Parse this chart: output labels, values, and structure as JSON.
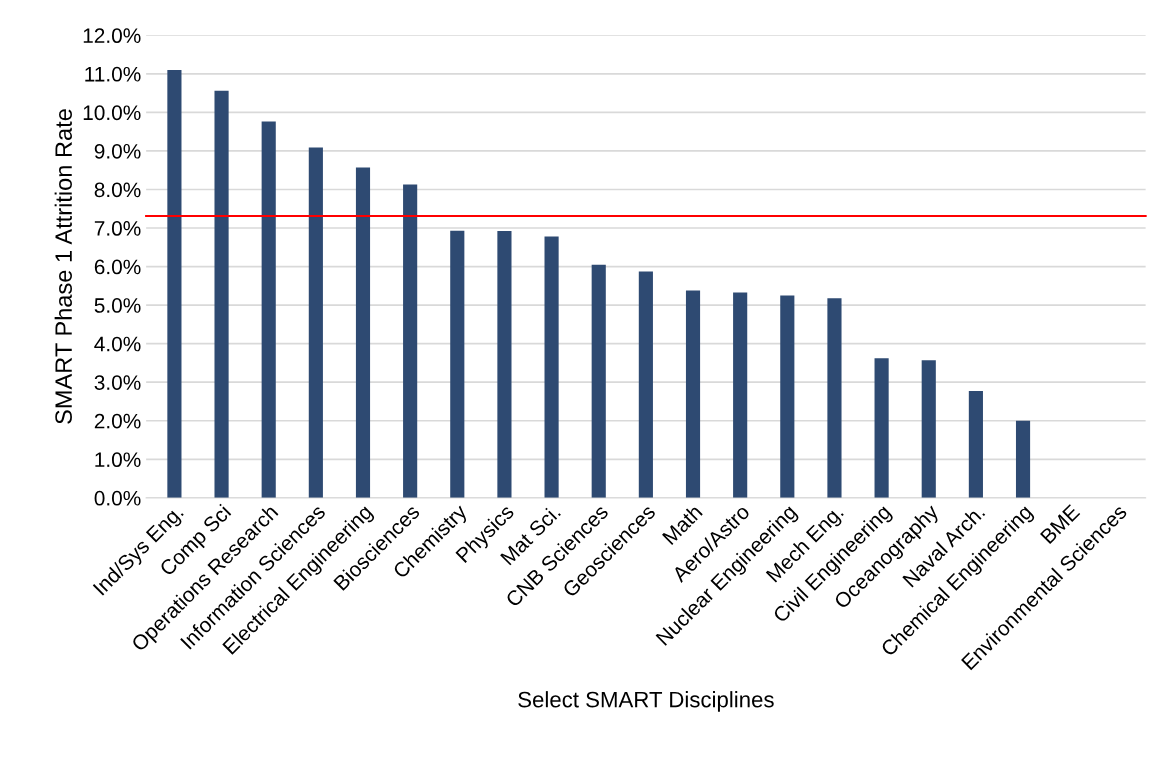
{
  "chart_data": {
    "type": "bar",
    "xlabel": "Select SMART Disciplines",
    "ylabel": "SMART Phase 1 Attrition Rate",
    "categories": [
      "Ind/Sys Eng.",
      "Comp Sci",
      "Operations Research",
      "Information Sciences",
      "Electrical Engineering",
      "Biosciences",
      "Chemistry",
      "Physics",
      "Mat Sci.",
      "CNB Sciences",
      "Geosciences",
      "Math",
      "Aero/Astro",
      "Nuclear Engineering",
      "Mech Eng.",
      "Civil Engineering",
      "Oceanography",
      "Naval Arch.",
      "Chemical Engineering",
      "BME",
      "Environmental Sciences"
    ],
    "values": [
      11.1,
      10.56,
      9.76,
      9.09,
      8.57,
      8.13,
      6.93,
      6.92,
      6.78,
      6.05,
      5.87,
      5.38,
      5.33,
      5.25,
      5.18,
      3.62,
      3.57,
      2.77,
      2.0,
      0,
      0
    ],
    "color": "#2e4a72",
    "ylim": [
      0,
      12
    ],
    "yticks": [
      {
        "value": 0,
        "label": "0.0%"
      },
      {
        "value": 1,
        "label": "1.0%"
      },
      {
        "value": 2,
        "label": "2.0%"
      },
      {
        "value": 3,
        "label": "3.0%"
      },
      {
        "value": 4,
        "label": "4.0%"
      },
      {
        "value": 5,
        "label": "5.0%"
      },
      {
        "value": 6,
        "label": "6.0%"
      },
      {
        "value": 7,
        "label": "7.0%"
      },
      {
        "value": 8,
        "label": "8.0%"
      },
      {
        "value": 9,
        "label": "9.0%"
      },
      {
        "value": 10,
        "label": "10.0%"
      },
      {
        "value": 11,
        "label": "11.0%"
      },
      {
        "value": 12,
        "label": "12.0%"
      }
    ],
    "grid": "y",
    "ref_lines": [
      {
        "axis": "y",
        "value": 7.31,
        "color": "#ff0000"
      }
    ]
  }
}
